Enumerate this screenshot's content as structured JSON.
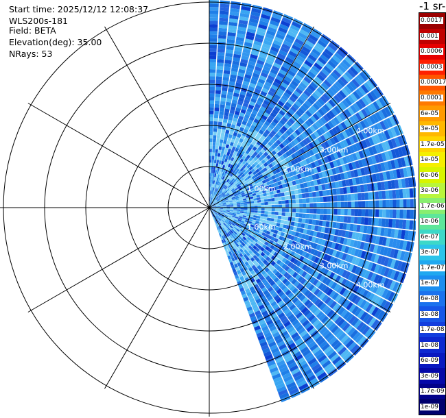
{
  "info": {
    "start_time": "Start time: 2025/12/12 12:08:37",
    "station": "WLS200s-181",
    "field": "Field: BETA",
    "elevation": "Elevation(deg): 35.00",
    "nrays": "NRays: 53"
  },
  "colorbar": {
    "title": "-1 sr-",
    "labels": [
      "0.0017",
      "0.001",
      "0.0006",
      "0.0003",
      "0.00017",
      "0.0001",
      "6e-05",
      "3e-05",
      "1.7e-05",
      "1e-05",
      "6e-06",
      "3e-06",
      "1.7e-06",
      "1e-06",
      "6e-07",
      "3e-07",
      "1.7e-07",
      "1e-07",
      "6e-08",
      "3e-08",
      "1.7e-08",
      "1e-08",
      "6e-09",
      "3e-09",
      "1.7e-09",
      "1e-09"
    ],
    "colors": [
      "#9b0000",
      "#c00000",
      "#e60000",
      "#ff2000",
      "#ff5500",
      "#ff7a00",
      "#ff9a00",
      "#ffb800",
      "#ffd500",
      "#f5ef00",
      "#d8f500",
      "#b8f53c",
      "#88ee70",
      "#5ee69a",
      "#3dd8c8",
      "#2cc4ea",
      "#20a8f0",
      "#1c8ef0",
      "#1a72ee",
      "#1656e8",
      "#123ede",
      "#0d28d0",
      "#0818c0",
      "#0408a8",
      "#02028a",
      "#00006e"
    ]
  },
  "chart_data": {
    "type": "heatmap",
    "subtype": "ppi",
    "field": "BETA",
    "elevation_deg": 35.0,
    "n_rays": 53,
    "range_rings_km": [
      1,
      2,
      3,
      4,
      5
    ],
    "range_labels": [
      "1.00km",
      "2.00km",
      "3.00km",
      "4.00km",
      "5.00km"
    ],
    "azimuth_sector_deg": [
      0,
      160
    ],
    "max_range_km": 5.0,
    "color_scale": "log",
    "value_range": [
      1e-09,
      0.0017
    ]
  }
}
